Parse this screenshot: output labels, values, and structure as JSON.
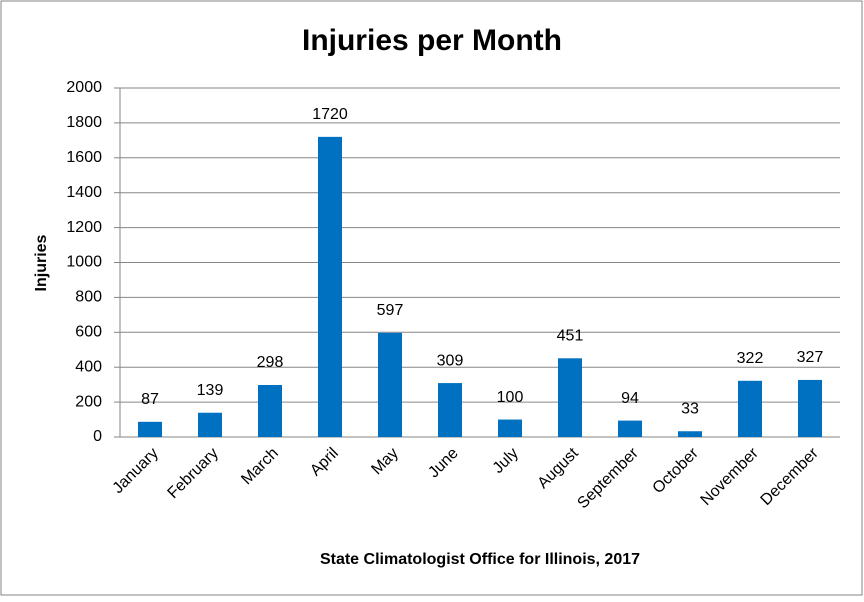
{
  "chart_data": {
    "type": "bar",
    "title": "Injuries per Month",
    "x_label": "State Climatologist Office for Illinois, 2017",
    "y_label": "Injuries",
    "categories": [
      "January",
      "February",
      "March",
      "April",
      "May",
      "June",
      "July",
      "August",
      "September",
      "October",
      "November",
      "December"
    ],
    "values": [
      87,
      139,
      298,
      1720,
      597,
      309,
      100,
      451,
      94,
      33,
      322,
      327
    ],
    "color": "#0070c0",
    "ylim": [
      0,
      2000
    ],
    "yticks": [
      0,
      200,
      400,
      600,
      800,
      1000,
      1200,
      1400,
      1600,
      1800,
      2000
    ],
    "grid": true
  }
}
